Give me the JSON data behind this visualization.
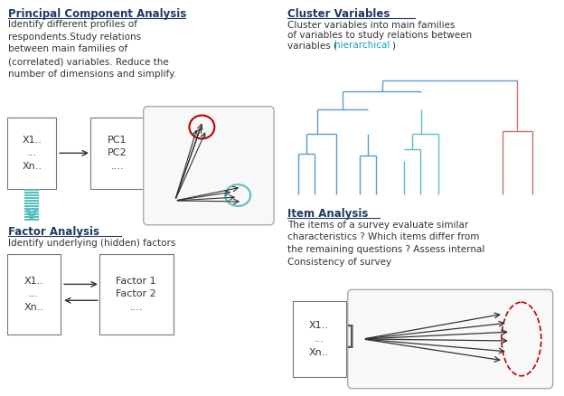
{
  "bg_color": "#ffffff",
  "dark_blue": "#1f3864",
  "text_color": "#333333",
  "teal": "#5bbfbf",
  "red": "#c00000",
  "den_blue": "#5b9bd5",
  "den_teal": "#5bbfbf",
  "den_red": "#c87070",
  "gray": "#888888",
  "orange_teal": "#17a2b8",
  "pca_title": "Principal Component Analysis",
  "pca_body": "Identify different profiles of\nrespondents.Study relations\nbetween main families of\n(correlated) variables. Reduce the\nnumber of dimensions and simplify.",
  "pca_box1": "X1..\n...\nXn..",
  "pca_box2": "PC1\nPC2\n....",
  "cv_title": "Cluster Variables",
  "cv_body1": "Cluster variables into main families\nof variables to study relations between\nvariables (",
  "cv_highlight": "hierarchical",
  "cv_body2": ")",
  "fa_title": "Factor Analysis",
  "fa_body": "Identify underlying (hidden) factors",
  "fa_box1": "X1..\n...\nXn..",
  "fa_box2": "Factor 1\nFactor 2\n....",
  "ia_title": "Item Analysis",
  "ia_body": "The items of a survey evaluate similar\ncharacteristics ? Which items differ from\nthe remaining questions ? Assess internal\nConsistency of survey",
  "ia_box": "X1..\n...\nXn.."
}
